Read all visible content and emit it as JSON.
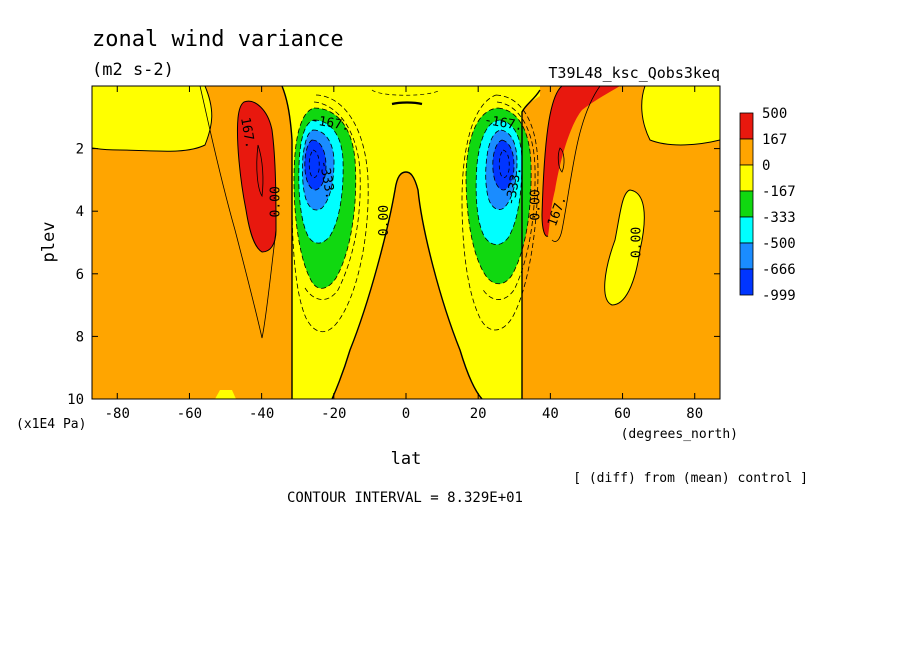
{
  "title": "zonal wind variance",
  "units": "(m2 s-2)",
  "run_label": "T39L48_ksc_Qobs3keq",
  "diff_note": "[ (diff) from (mean) control ]",
  "contour_interval": "CONTOUR INTERVAL = 8.329E+01",
  "chart_data": {
    "type": "heatmap",
    "xlabel": "lat",
    "xunits": "(degrees_north)",
    "ylabel": "plev",
    "yunits": "(x1E4 Pa)",
    "xlim": [
      -87,
      87
    ],
    "ylim": [
      10,
      0
    ],
    "x_ticks": [
      -80,
      -60,
      -40,
      -20,
      0,
      20,
      40,
      60,
      80
    ],
    "x_tick_labels": [
      "-80",
      "-60",
      "-40",
      "-20",
      "0",
      "20",
      "40",
      "60",
      "80"
    ],
    "y_ticks": [
      2,
      4,
      6,
      8,
      10
    ],
    "y_tick_labels": [
      "2",
      "4",
      "6",
      "8",
      "10"
    ],
    "colorbar": {
      "levels": [
        "500",
        "167",
        "0",
        "-167",
        "-333",
        "-500",
        "-666",
        "-999"
      ],
      "colors": [
        "#e8180e",
        "#ffa500",
        "#ffff00",
        "#10d810",
        "#00ffff",
        "#1a8cff",
        "#0035ff"
      ]
    },
    "contour_labels": [
      {
        "text": "167.",
        "lat": -44,
        "plev": 1.5,
        "rot": 80
      },
      {
        "text": "-167.",
        "lat": -21,
        "plev": 1.2,
        "rot": 10
      },
      {
        "text": "0.00",
        "lat": -36,
        "plev": 3.7,
        "rot": -90
      },
      {
        "text": "-333.",
        "lat": -22,
        "plev": 3.0,
        "rot": 80
      },
      {
        "text": "0.00",
        "lat": -6,
        "plev": 4.3,
        "rot": -90
      },
      {
        "text": "-167.",
        "lat": 27,
        "plev": 1.2,
        "rot": 10
      },
      {
        "text": "-333.",
        "lat": 30,
        "plev": 3.2,
        "rot": -80
      },
      {
        "text": "0.00",
        "lat": 36,
        "plev": 3.8,
        "rot": -90
      },
      {
        "text": "167.",
        "lat": 42,
        "plev": 4.0,
        "rot": -70
      },
      {
        "text": "0.00",
        "lat": 64,
        "plev": 5.0,
        "rot": -90
      }
    ]
  }
}
